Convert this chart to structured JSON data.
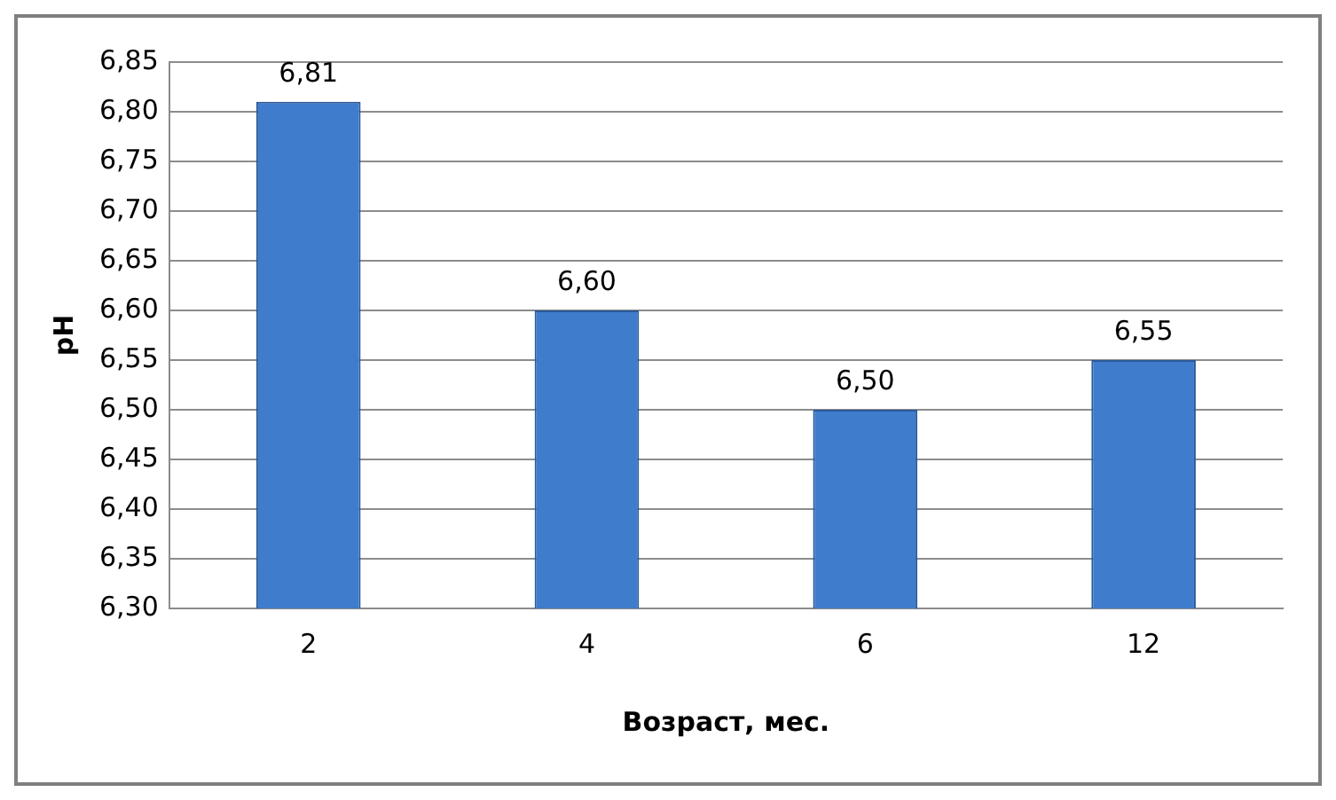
{
  "chart_data": {
    "type": "bar",
    "xlabel": "Возраст, мес.",
    "ylabel": "pH",
    "categories": [
      "2",
      "4",
      "6",
      "12"
    ],
    "values": [
      6.81,
      6.6,
      6.5,
      6.55
    ],
    "value_labels": [
      "6,81",
      "6,60",
      "6,50",
      "6,55"
    ],
    "color": "#3f7ccc",
    "ylim": [
      6.3,
      6.85
    ],
    "yticks": [
      {
        "value": 6.3,
        "label": "6,30"
      },
      {
        "value": 6.35,
        "label": "6,35"
      },
      {
        "value": 6.4,
        "label": "6,40"
      },
      {
        "value": 6.45,
        "label": "6,45"
      },
      {
        "value": 6.5,
        "label": "6,50"
      },
      {
        "value": 6.55,
        "label": "6,55"
      },
      {
        "value": 6.6,
        "label": "6,60"
      },
      {
        "value": 6.65,
        "label": "6,65"
      },
      {
        "value": 6.7,
        "label": "6,70"
      },
      {
        "value": 6.75,
        "label": "6,75"
      },
      {
        "value": 6.8,
        "label": "6,80"
      },
      {
        "value": 6.85,
        "label": "6,85"
      }
    ],
    "grid": "y",
    "legend": false
  }
}
